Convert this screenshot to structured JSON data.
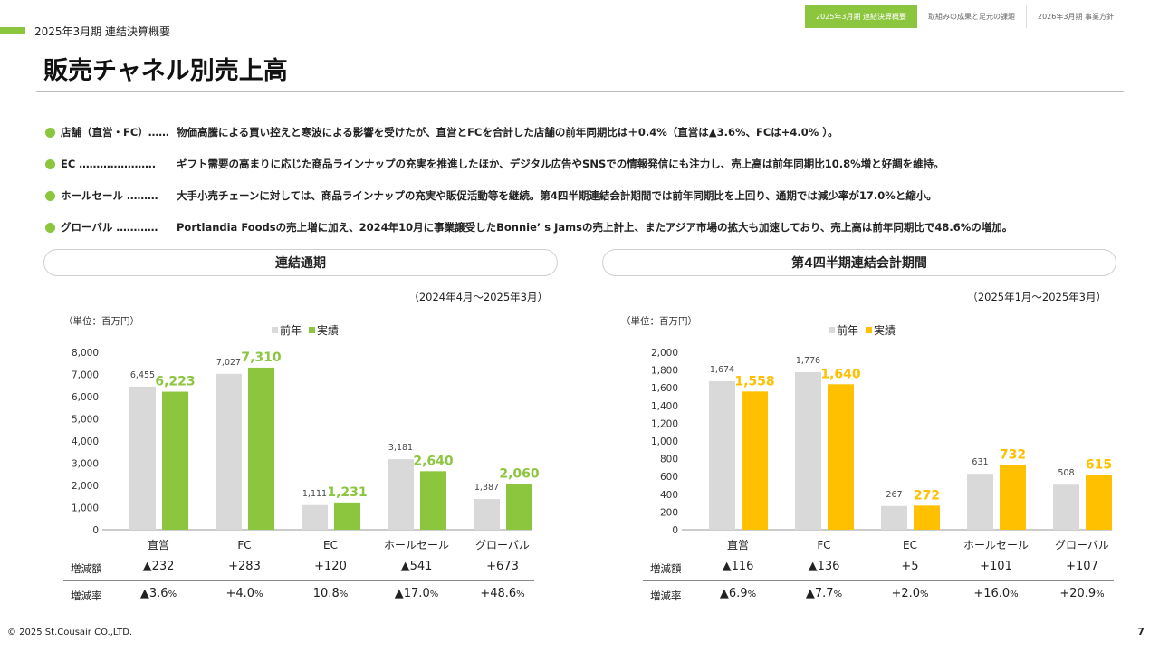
{
  "header": {
    "section_label": "2025年3月期 連結決算概要",
    "nav_tabs": [
      "2025年3月期 連結決算概要",
      "取組みの成果と足元の課題",
      "2026年3月期 事業方針"
    ]
  },
  "page_title": "販売チャネル別売上高",
  "bullets": [
    {
      "label": "店舗（直営・FC）……",
      "text": "物価高騰による買い控えと寒波による影響を受けたが、直営とFCを合計した店舗の前年同期比は＋0.4%（直営は▲3.6%、FCは+4.0% ）。"
    },
    {
      "label": "EC ………………….",
      "text": "ギフト需要の高まりに応じた商品ラインナップの充実を推進したほか、デジタル広告やSNSでの情報発信にも注力し、売上高は前年同期比10.8%増と好調を維持。"
    },
    {
      "label": "ホールセール ………",
      "text": "大手小売チェーンに対しては、商品ラインナップの充実や販促活動等を継続。第4四半期連結会計期間では前年同期比を上回り、通期では減少率が17.0%と縮小。"
    },
    {
      "label": "グローバル …………",
      "text": "Portlandia Foodsの売上増に加え、2024年10月に事業譲受したBonnie’ s Jamsの売上計上、またアジア市場の拡大も加速しており、売上高は前年同期比で48.6%の増加。"
    }
  ],
  "legend": {
    "prev": "前年",
    "curr": "実績"
  },
  "unit_label": "（単位：百万円）",
  "row_labels": {
    "diff": "増減額",
    "rate": "増減率"
  },
  "colors": {
    "accent": "#8cc63f",
    "prev_bar": "#d9d9d9",
    "q4_bar": "#ffc000"
  },
  "chart_data": [
    {
      "type": "bar",
      "title": "連結通期",
      "period": "（2024年4月～2025年3月）",
      "categories": [
        "直営",
        "FC",
        "EC",
        "ホールセール",
        "グローバル"
      ],
      "series": [
        {
          "name": "前年",
          "values": [
            6455,
            7027,
            1111,
            3181,
            1387
          ],
          "labels": [
            "6,455",
            "7,027",
            "1,111",
            "3,181",
            "1,387"
          ]
        },
        {
          "name": "実績",
          "values": [
            6223,
            7310,
            1231,
            2640,
            2060
          ],
          "labels": [
            "6,223",
            "7,310",
            "1,231",
            "2,640",
            "2,060"
          ]
        }
      ],
      "ylim": [
        0,
        8000
      ],
      "yticks": [
        "0",
        "1,000",
        "2,000",
        "3,000",
        "4,000",
        "5,000",
        "6,000",
        "7,000",
        "8,000"
      ],
      "diff": [
        "▲232",
        "+283",
        "+120",
        "▲541",
        "+673"
      ],
      "rate": [
        [
          "▲3.6",
          "%"
        ],
        [
          "+4.0",
          "%"
        ],
        [
          "10.8",
          "%"
        ],
        [
          "▲17.0",
          "%"
        ],
        [
          "+48.6",
          "%"
        ]
      ]
    },
    {
      "type": "bar",
      "title": "第4四半期連結会計期間",
      "period": "（2025年1月～2025年3月）",
      "categories": [
        "直営",
        "FC",
        "EC",
        "ホールセール",
        "グローバル"
      ],
      "series": [
        {
          "name": "前年",
          "values": [
            1674,
            1776,
            267,
            631,
            508
          ],
          "labels": [
            "1,674",
            "1,776",
            "267",
            "631",
            "508"
          ]
        },
        {
          "name": "実績",
          "values": [
            1558,
            1640,
            272,
            732,
            615
          ],
          "labels": [
            "1,558",
            "1,640",
            "272",
            "732",
            "615"
          ]
        }
      ],
      "ylim": [
        0,
        2000
      ],
      "yticks": [
        "0",
        "200",
        "400",
        "600",
        "800",
        "1,000",
        "1,200",
        "1,400",
        "1,600",
        "1,800",
        "2,000"
      ],
      "diff": [
        "▲116",
        "▲136",
        "+5",
        "+101",
        "+107"
      ],
      "rate": [
        [
          "▲6.9",
          "%"
        ],
        [
          "▲7.7",
          "%"
        ],
        [
          "+2.0",
          "%"
        ],
        [
          "+16.0",
          "%"
        ],
        [
          "+20.9",
          "%"
        ]
      ]
    }
  ],
  "footer": {
    "copyright": "© 2025 St.Cousair CO.,LTD.",
    "page_number": "7"
  }
}
